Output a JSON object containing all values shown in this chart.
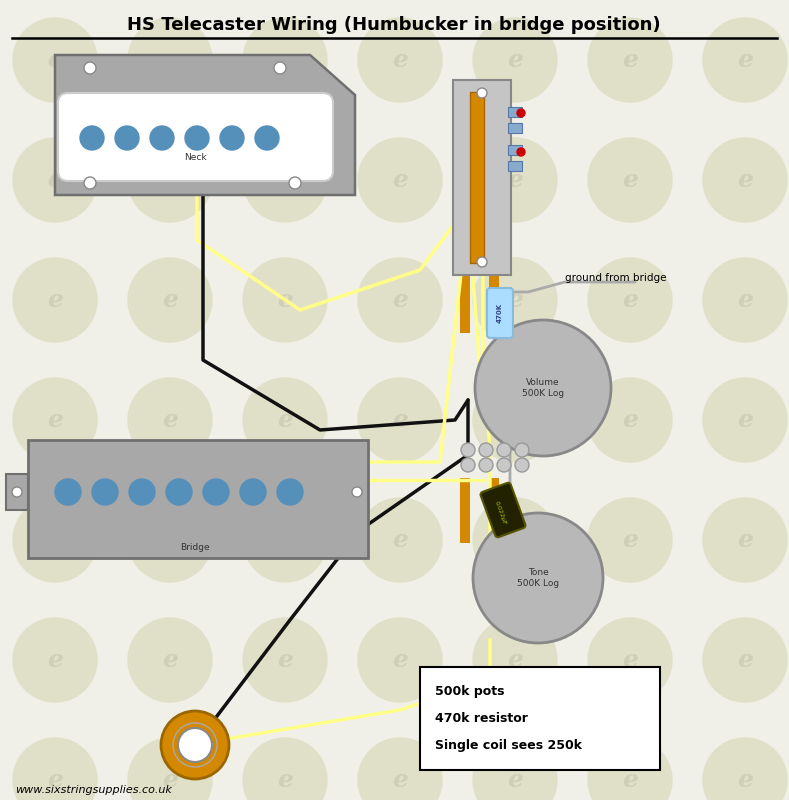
{
  "title": "HS Telecaster Wiring (Humbucker in bridge position)",
  "bg_color": "#f0f0e8",
  "wm_color": "#e0e0c8",
  "footer_text": "www.sixstringsupplies.co.uk",
  "notes_lines": [
    "500k pots",
    "470k resistor",
    "Single coil sees 250k"
  ],
  "ground_label": "ground from bridge",
  "neck_label": "Neck",
  "bridge_label": "Bridge",
  "volume_label": "Volume\n500K Log",
  "tone_label": "Tone\n500K Log",
  "resistor_label": "470K",
  "cap_label": "0.022µF",
  "yellow": "#ffff88",
  "black": "#111111",
  "gray_wire": "#aaaaaa",
  "plate_gray": "#a8a8a8",
  "dark_gray": "#707070",
  "pot_gray": "#b8b8b8",
  "orange": "#d48800",
  "blue_pole": "#5590bb",
  "switch_blue": "#88aacc",
  "resistor_blue": "#aaddff",
  "cap_dark": "#222200",
  "red": "#cc0000"
}
